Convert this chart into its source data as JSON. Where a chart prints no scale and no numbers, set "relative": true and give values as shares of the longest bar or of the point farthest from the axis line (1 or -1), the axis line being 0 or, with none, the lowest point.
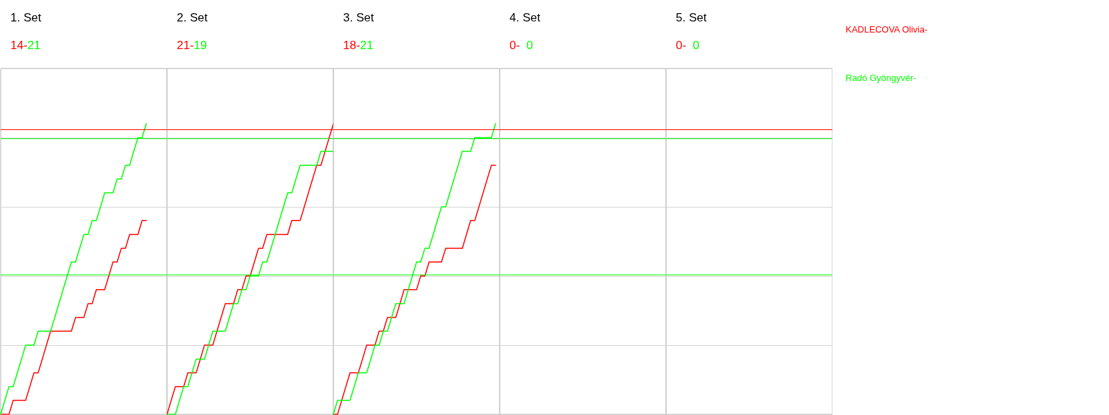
{
  "chart_data": [
    {
      "type": "line",
      "title": "1. Set",
      "subtitle": "14-21",
      "relative": true,
      "grid": "y",
      "categories": [
        null,
        null,
        null,
        null,
        null,
        null,
        null,
        null,
        null,
        null,
        null,
        null,
        null,
        null,
        null,
        null,
        null,
        null,
        null,
        null,
        null,
        null,
        null,
        null,
        null,
        null,
        null,
        null,
        null,
        null,
        null,
        null,
        null,
        null,
        null,
        null,
        null,
        null,
        null,
        null,
        null
      ],
      "ref_lines": [
        {
          "axis": "y",
          "value": 0.976,
          "color": "#ff0000"
        },
        {
          "axis": "y",
          "value": 0.952,
          "color": "#00ff00"
        },
        {
          "axis": "y",
          "value": 0.476,
          "color": "#00ff00"
        }
      ],
      "series": [
        {
          "name": "KADLECOVA Olivia-",
          "color": "#ff0000",
          "values": [
            0,
            0,
            0,
            0.048,
            0.048,
            0.048,
            0.048,
            0.095,
            0.143,
            0.143,
            0.19,
            0.238,
            0.286,
            0.286,
            0.286,
            0.286,
            0.286,
            0.286,
            0.333,
            0.333,
            0.333,
            0.381,
            0.381,
            0.429,
            0.429,
            0.429,
            0.476,
            0.524,
            0.524,
            0.571,
            0.571,
            0.619,
            0.619,
            0.619,
            0.667,
            0.667,
            null,
            null,
            null,
            null,
            null
          ]
        },
        {
          "name": "Radó Gyöngyvér-",
          "color": "#00ff00",
          "values": [
            0,
            0.048,
            0.095,
            0.095,
            0.143,
            0.19,
            0.238,
            0.238,
            0.238,
            0.286,
            0.286,
            0.286,
            0.286,
            0.333,
            0.381,
            0.429,
            0.476,
            0.524,
            0.524,
            0.571,
            0.619,
            0.619,
            0.667,
            0.667,
            0.714,
            0.762,
            0.762,
            0.762,
            0.81,
            0.81,
            0.857,
            0.857,
            0.905,
            0.952,
            0.952,
            1,
            null,
            null,
            null,
            null,
            null
          ]
        }
      ]
    },
    {
      "type": "line",
      "title": "2. Set",
      "subtitle": "21-19",
      "relative": true,
      "grid": "y",
      "categories": [
        null,
        null,
        null,
        null,
        null,
        null,
        null,
        null,
        null,
        null,
        null,
        null,
        null,
        null,
        null,
        null,
        null,
        null,
        null,
        null,
        null,
        null,
        null,
        null,
        null,
        null,
        null,
        null,
        null,
        null,
        null,
        null,
        null,
        null,
        null,
        null,
        null,
        null,
        null,
        null,
        null
      ],
      "ref_lines": [
        {
          "axis": "y",
          "value": 0.976,
          "color": "#ff0000"
        },
        {
          "axis": "y",
          "value": 0.952,
          "color": "#00ff00"
        },
        {
          "axis": "y",
          "value": 0.476,
          "color": "#00ff00"
        }
      ],
      "series": [
        {
          "color": "#ff0000",
          "values": [
            0,
            0.048,
            0.095,
            0.095,
            0.095,
            0.143,
            0.143,
            0.143,
            0.19,
            0.238,
            0.238,
            0.238,
            0.286,
            0.333,
            0.381,
            0.381,
            0.381,
            0.429,
            0.429,
            0.476,
            0.476,
            0.524,
            0.571,
            0.571,
            0.619,
            0.619,
            0.619,
            0.619,
            0.619,
            0.619,
            0.667,
            0.667,
            0.667,
            0.714,
            0.762,
            0.81,
            0.857,
            0.857,
            0.905,
            0.952,
            1
          ]
        },
        {
          "color": "#00ff00",
          "values": [
            0,
            0,
            0,
            0.048,
            0.095,
            0.095,
            0.143,
            0.19,
            0.19,
            0.19,
            0.238,
            0.286,
            0.286,
            0.286,
            0.286,
            0.333,
            0.381,
            0.381,
            0.429,
            0.429,
            0.476,
            0.476,
            0.476,
            0.524,
            0.524,
            0.571,
            0.619,
            0.667,
            0.714,
            0.762,
            0.762,
            0.81,
            0.857,
            0.857,
            0.857,
            0.857,
            0.857,
            0.905,
            0.905,
            0.905,
            0.905
          ]
        }
      ]
    },
    {
      "type": "line",
      "title": "3. Set",
      "subtitle": "18-21",
      "relative": true,
      "grid": "y",
      "categories": [
        null,
        null,
        null,
        null,
        null,
        null,
        null,
        null,
        null,
        null,
        null,
        null,
        null,
        null,
        null,
        null,
        null,
        null,
        null,
        null,
        null,
        null,
        null,
        null,
        null,
        null,
        null,
        null,
        null,
        null,
        null,
        null,
        null,
        null,
        null,
        null,
        null,
        null,
        null,
        null,
        null
      ],
      "ref_lines": [
        {
          "axis": "y",
          "value": 0.976,
          "color": "#ff0000"
        },
        {
          "axis": "y",
          "value": 0.952,
          "color": "#00ff00"
        },
        {
          "axis": "y",
          "value": 0.476,
          "color": "#00ff00"
        }
      ],
      "series": [
        {
          "color": "#ff0000",
          "values": [
            0,
            0,
            0.048,
            0.095,
            0.143,
            0.143,
            0.143,
            0.19,
            0.238,
            0.238,
            0.238,
            0.286,
            0.286,
            0.333,
            0.333,
            0.333,
            0.381,
            0.429,
            0.429,
            0.429,
            0.429,
            0.476,
            0.476,
            0.524,
            0.524,
            0.524,
            0.524,
            0.571,
            0.571,
            0.571,
            0.571,
            0.571,
            0.619,
            0.667,
            0.667,
            0.714,
            0.762,
            0.81,
            0.857,
            0.857,
            null
          ]
        },
        {
          "color": "#00ff00",
          "values": [
            0,
            0.048,
            0.048,
            0.048,
            0.048,
            0.095,
            0.143,
            0.143,
            0.143,
            0.19,
            0.238,
            0.238,
            0.286,
            0.286,
            0.333,
            0.381,
            0.381,
            0.381,
            0.429,
            0.476,
            0.524,
            0.524,
            0.571,
            0.571,
            0.619,
            0.667,
            0.714,
            0.714,
            0.762,
            0.81,
            0.857,
            0.905,
            0.905,
            0.905,
            0.952,
            0.952,
            0.952,
            0.952,
            0.952,
            1,
            null
          ]
        }
      ]
    },
    {
      "type": "other",
      "title": "4. Set",
      "subtitle": "0-  0"
    },
    {
      "type": "other",
      "title": "5. Set",
      "subtitle": "0-  0"
    }
  ]
}
